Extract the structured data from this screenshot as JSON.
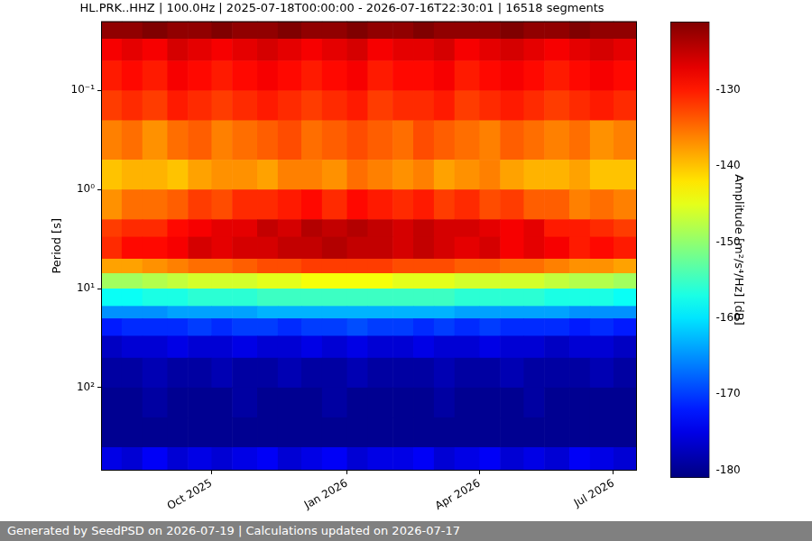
{
  "chart_data": {
    "type": "heatmap",
    "title": "HL.PRK..HHZ | 100.0Hz | 2025-07-18T00:00:00 - 2026-07-16T22:30:01 | 16518 segments",
    "y_label": "Period [s]",
    "log": "y",
    "grid": true,
    "xlim": [
      "2025-07-18T00:00:00",
      "2026-07-16T22:30:01"
    ],
    "xticks": [
      {
        "value": "2025-10-01",
        "label": "Oct 2025"
      },
      {
        "value": "2026-01-01",
        "label": "Jan 2026"
      },
      {
        "value": "2026-04-01",
        "label": "Apr 2026"
      },
      {
        "value": "2026-07-01",
        "label": "Jul 2026"
      }
    ],
    "ylim": [
      0.02,
      690
    ],
    "yticks": [
      {
        "value": 0.1,
        "label": "10⁻¹"
      },
      {
        "value": 1,
        "label": "10⁰"
      },
      {
        "value": 10,
        "label": "10¹"
      },
      {
        "value": 100,
        "label": "10²"
      }
    ],
    "x": [
      "2025-07-18T00:00:00",
      "2025-08-01",
      "2025-08-15",
      "2025-09-01",
      "2025-09-15",
      "2025-10-01",
      "2025-10-15",
      "2025-11-01",
      "2025-11-15",
      "2025-12-01",
      "2025-12-15",
      "2026-01-01",
      "2026-01-15",
      "2026-02-01",
      "2026-02-15",
      "2026-03-01",
      "2026-03-15",
      "2026-04-01",
      "2026-04-15",
      "2026-05-01",
      "2026-05-15",
      "2026-06-01",
      "2026-06-15",
      "2026-07-01",
      "2026-07-16T22:30:01"
    ],
    "y": [
      0.02,
      0.03,
      0.05,
      0.1,
      0.2,
      0.5,
      1,
      2,
      3,
      5,
      7,
      10,
      15,
      20,
      30,
      50,
      100,
      200,
      400,
      690
    ],
    "cells": [
      [
        -122,
        -122,
        -121,
        -122,
        -122,
        -121,
        -122,
        -122,
        -121,
        -122,
        -122,
        -121,
        -122,
        -122,
        -121,
        -122,
        -122,
        -122,
        -121,
        -122,
        -122,
        -121,
        -122,
        -122
      ],
      [
        -128,
        -127,
        -128,
        -126,
        -127,
        -128,
        -127,
        -126,
        -127,
        -128,
        -127,
        -126,
        -128,
        -127,
        -127,
        -126,
        -128,
        -127,
        -126,
        -127,
        -128,
        -127,
        -126,
        -127
      ],
      [
        -130,
        -129,
        -130,
        -128,
        -129,
        -130,
        -129,
        -128,
        -129,
        -130,
        -129,
        -128,
        -130,
        -129,
        -129,
        -128,
        -130,
        -129,
        -128,
        -129,
        -130,
        -129,
        -128,
        -129
      ],
      [
        -132,
        -131,
        -132,
        -130,
        -131,
        -132,
        -131,
        -130,
        -131,
        -132,
        -131,
        -130,
        -132,
        -131,
        -131,
        -130,
        -132,
        -131,
        -130,
        -131,
        -132,
        -131,
        -130,
        -131
      ],
      [
        -136,
        -135,
        -137,
        -135,
        -134,
        -136,
        -135,
        -134,
        -133,
        -135,
        -134,
        -133,
        -134,
        -135,
        -133,
        -134,
        -135,
        -136,
        -134,
        -135,
        -136,
        -135,
        -137,
        -136
      ],
      [
        -140,
        -139,
        -139,
        -140,
        -138,
        -137,
        -137,
        -138,
        -136,
        -136,
        -137,
        -135,
        -136,
        -137,
        -136,
        -138,
        -137,
        -136,
        -138,
        -139,
        -139,
        -138,
        -140,
        -140
      ],
      [
        -137,
        -135,
        -135,
        -134,
        -132,
        -133,
        -131,
        -131,
        -130,
        -129,
        -131,
        -129,
        -130,
        -131,
        -130,
        -132,
        -131,
        -133,
        -132,
        -134,
        -134,
        -136,
        -135,
        -136
      ],
      [
        -132,
        -131,
        -131,
        -129,
        -128,
        -127,
        -127,
        -125,
        -126,
        -124,
        -125,
        -124,
        -125,
        -126,
        -125,
        -126,
        -126,
        -127,
        -128,
        -127,
        -130,
        -130,
        -131,
        -132
      ],
      [
        -131,
        -129,
        -129,
        -128,
        -126,
        -127,
        -126,
        -126,
        -125,
        -125,
        -124,
        -125,
        -125,
        -126,
        -125,
        -126,
        -127,
        -126,
        -128,
        -127,
        -128,
        -130,
        -129,
        -130
      ],
      [
        -138,
        -138,
        -137,
        -136,
        -135,
        -135,
        -134,
        -133,
        -133,
        -132,
        -132,
        -132,
        -132,
        -133,
        -133,
        -133,
        -134,
        -134,
        -135,
        -135,
        -136,
        -137,
        -137,
        -138
      ],
      [
        -149,
        -149,
        -148,
        -147,
        -146,
        -146,
        -146,
        -145,
        -145,
        -144,
        -144,
        -144,
        -144,
        -145,
        -145,
        -145,
        -146,
        -146,
        -146,
        -146,
        -147,
        -148,
        -148,
        -149
      ],
      [
        -158,
        -158,
        -157,
        -157,
        -156,
        -156,
        -156,
        -155,
        -155,
        -155,
        -155,
        -155,
        -155,
        -155,
        -155,
        -155,
        -156,
        -156,
        -156,
        -156,
        -157,
        -157,
        -157,
        -158
      ],
      [
        -165,
        -165,
        -165,
        -164,
        -164,
        -164,
        -164,
        -163,
        -163,
        -163,
        -163,
        -163,
        -163,
        -163,
        -163,
        -163,
        -164,
        -164,
        -164,
        -164,
        -164,
        -165,
        -165,
        -165
      ],
      [
        -172,
        -171,
        -171,
        -171,
        -170,
        -171,
        -170,
        -170,
        -171,
        -170,
        -170,
        -169,
        -170,
        -170,
        -171,
        -170,
        -171,
        -170,
        -171,
        -171,
        -171,
        -172,
        -171,
        -172
      ],
      [
        -177,
        -176,
        -176,
        -175,
        -176,
        -176,
        -175,
        -176,
        -176,
        -175,
        -176,
        -175,
        -176,
        -176,
        -175,
        -176,
        -176,
        -175,
        -176,
        -176,
        -177,
        -176,
        -176,
        -177
      ],
      [
        -179,
        -179,
        -178,
        -179,
        -179,
        -178,
        -179,
        -179,
        -178,
        -179,
        -179,
        -178,
        -179,
        -179,
        -179,
        -178,
        -179,
        -179,
        -178,
        -179,
        -179,
        -179,
        -178,
        -179
      ],
      [
        -180,
        -180,
        -179,
        -180,
        -180,
        -180,
        -179,
        -180,
        -180,
        -180,
        -179,
        -180,
        -180,
        -180,
        -180,
        -179,
        -180,
        -180,
        -180,
        -179,
        -180,
        -180,
        -180,
        -180
      ],
      [
        -180,
        -180,
        -180,
        -180,
        -180,
        -180,
        -180,
        -180,
        -180,
        -180,
        -180,
        -180,
        -180,
        -180,
        -180,
        -180,
        -180,
        -180,
        -180,
        -180,
        -180,
        -180,
        -180,
        -180
      ],
      [
        -175,
        -176,
        -174,
        -176,
        -175,
        -176,
        -175,
        -174,
        -176,
        -175,
        -174,
        -176,
        -175,
        -175,
        -174,
        -176,
        -175,
        -174,
        -176,
        -175,
        -176,
        -174,
        -175,
        -176
      ]
    ],
    "colorbar_label": "Amplitude [m²/s⁴/Hz] [dB]",
    "colorbar_range": [
      -181,
      -121
    ],
    "colorbar_ticks": [
      -180,
      -170,
      -160,
      -150,
      -140,
      -130
    ]
  },
  "footer": "Generated by SeedPSD on 2026-07-19 | Calculations updated on 2026-07-17"
}
